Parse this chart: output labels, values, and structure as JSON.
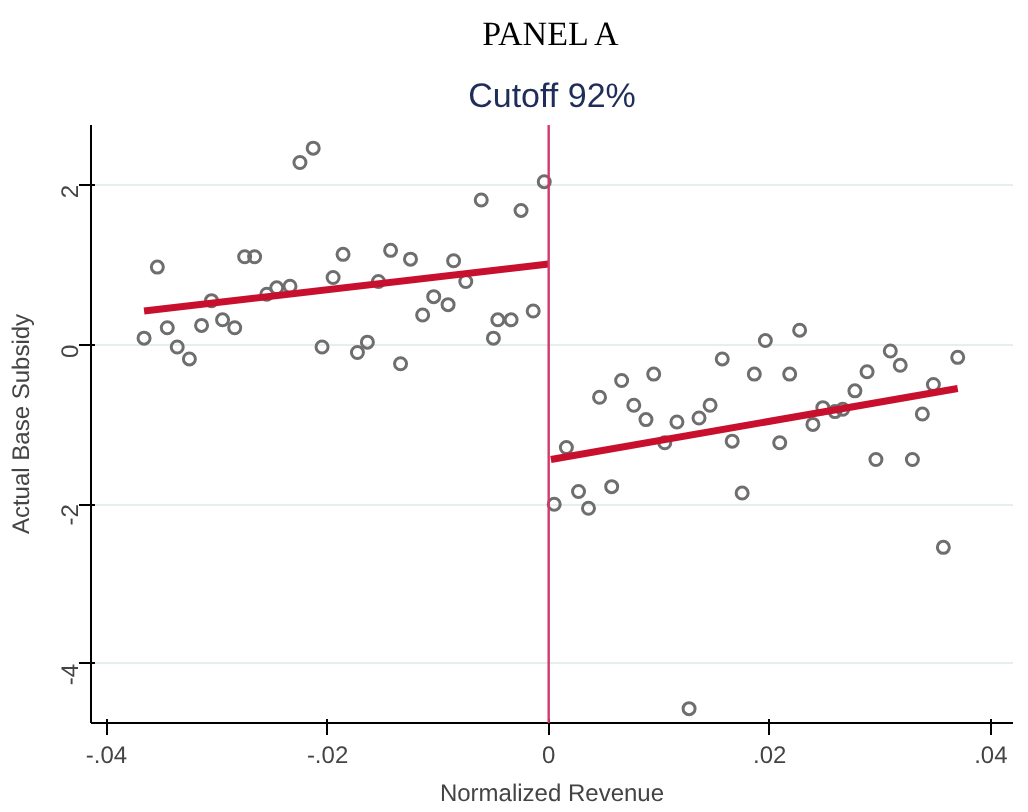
{
  "chart_data": {
    "type": "scatter",
    "title": "PANEL A",
    "subtitle": "Cutoff 92%",
    "xlabel": "Normalized Revenue",
    "ylabel": "Actual Base Subsidy",
    "xlim": [
      -0.0414,
      0.042
    ],
    "ylim": [
      -4.74,
      2.75
    ],
    "xticks": [
      {
        "value": -0.04,
        "label": "-.04"
      },
      {
        "value": -0.02,
        "label": "-.02"
      },
      0,
      {
        "value": 0.02,
        "label": ".02"
      },
      {
        "value": 0.04,
        "label": ".04"
      }
    ],
    "yticks": [
      -4,
      -2,
      0,
      2
    ],
    "grid": "y",
    "ref_lines": [
      {
        "axis": "x",
        "value": 0,
        "color": "#d1396a"
      }
    ],
    "series": [
      {
        "marker": "circle",
        "color": "#6e6e6e",
        "x": [
          -0.0366,
          -0.0354,
          -0.0345,
          -0.0336,
          -0.0325,
          -0.0314,
          -0.0305,
          -0.0295,
          -0.0284,
          -0.0275,
          -0.0266,
          -0.0255,
          -0.0246,
          -0.0234,
          -0.0225,
          -0.0213,
          -0.0205,
          -0.0195,
          -0.0186,
          -0.0173,
          -0.0164,
          -0.0154,
          -0.0143,
          -0.0134,
          -0.0125,
          -0.0114,
          -0.0104,
          -0.0091,
          -0.0086,
          -0.0075,
          -0.0061,
          -0.005,
          -0.0046,
          -0.0034,
          -0.0025,
          -0.0014,
          -0.0004
        ],
        "values": [
          0.08,
          0.97,
          0.21,
          -0.03,
          -0.18,
          0.24,
          0.55,
          0.31,
          0.21,
          1.1,
          1.1,
          0.63,
          0.71,
          0.73,
          2.28,
          2.46,
          -0.03,
          0.84,
          1.13,
          -0.1,
          0.03,
          0.79,
          1.18,
          -0.24,
          1.07,
          0.37,
          0.6,
          0.5,
          1.05,
          0.79,
          1.81,
          0.08,
          0.31,
          0.31,
          1.68,
          0.42,
          2.04
        ]
      },
      {
        "marker": "circle",
        "color": "#6e6e6e",
        "x": [
          0.0005,
          0.0016,
          0.0027,
          0.0036,
          0.0046,
          0.0057,
          0.0066,
          0.0077,
          0.0088,
          0.0095,
          0.0105,
          0.0116,
          0.0127,
          0.0136,
          0.0146,
          0.0157,
          0.0166,
          0.0175,
          0.0186,
          0.0196,
          0.0209,
          0.0218,
          0.0227,
          0.0239,
          0.0248,
          0.0259,
          0.0266,
          0.0277,
          0.0288,
          0.0296,
          0.0309,
          0.0318,
          0.0329,
          0.0338,
          0.0348,
          0.0357,
          0.037
        ],
        "values": [
          -2.0,
          -1.29,
          -1.84,
          -2.05,
          -0.66,
          -1.78,
          -0.45,
          -0.76,
          -0.94,
          -0.37,
          -1.23,
          -0.97,
          -4.56,
          -0.92,
          -0.76,
          -0.18,
          -1.21,
          -1.86,
          -0.37,
          0.05,
          -1.23,
          -0.37,
          0.18,
          -1.0,
          -0.79,
          -0.84,
          -0.81,
          -0.58,
          -0.34,
          -1.44,
          -0.08,
          -0.26,
          -1.44,
          -0.87,
          -0.5,
          -2.54,
          -0.16
        ]
      },
      {
        "type": "line",
        "color": "#c8102e",
        "x": [
          -0.0366,
          0
        ],
        "values": [
          0.42,
          1.01
        ]
      },
      {
        "type": "line",
        "color": "#c8102e",
        "x": [
          0.0002,
          0.037
        ],
        "values": [
          -1.44,
          -0.55
        ]
      }
    ]
  }
}
